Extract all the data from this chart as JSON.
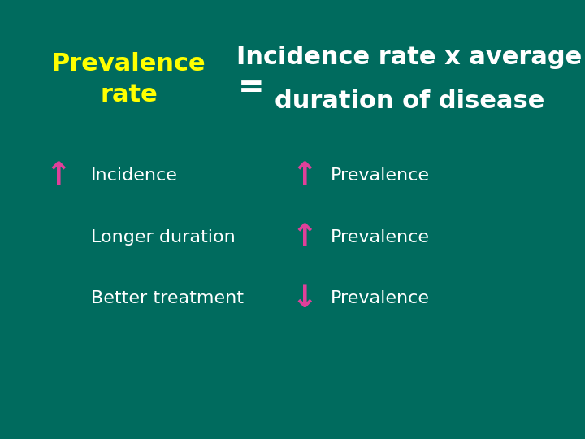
{
  "background_color": "#006B5E",
  "title_left": "Prevalence\nrate",
  "title_left_color": "#ffff00",
  "title_equals": "=",
  "title_equals_color": "#ffffff",
  "title_right_line1": "Incidence rate x average",
  "title_right_line2": "duration of disease",
  "title_right_color": "#ffffff",
  "title_fontsize": 22,
  "rows": [
    {
      "left_text": "Incidence",
      "left_arrow": "up",
      "right_text": "Prevalence",
      "right_arrow": "up"
    },
    {
      "left_text": "Longer duration",
      "left_arrow": null,
      "right_text": "Prevalence",
      "right_arrow": "up"
    },
    {
      "left_text": "Better treatment",
      "left_arrow": null,
      "right_text": "Prevalence",
      "right_arrow": "down"
    }
  ],
  "row_text_color": "#ffffff",
  "row_fontsize": 16,
  "arrow_color": "#e0409a",
  "arrow_up": "↑",
  "arrow_down": "↓",
  "arrow_fontsize": 28
}
